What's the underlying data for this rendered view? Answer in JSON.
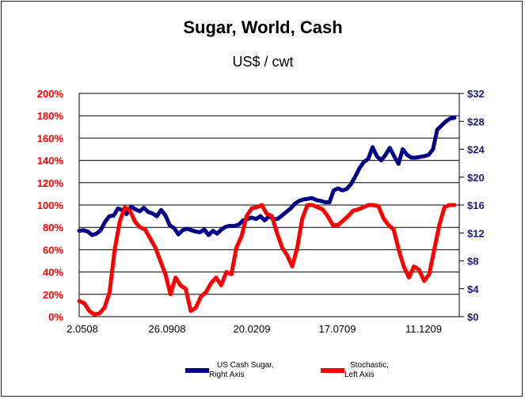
{
  "chart_data": {
    "type": "line",
    "title": "Sugar, World, Cash",
    "subtitle": "US$ / cwt",
    "colors": {
      "left_axis": "#ff0000",
      "right_axis": "#1a1a80",
      "series_sugar": "#00008b",
      "series_stoch": "#ff0000",
      "grid": "#000000"
    },
    "grid": true,
    "x_tick_labels": [
      "2.0508",
      "26.0908",
      "20.0209",
      "17.0709",
      "11.1209"
    ],
    "y_left": {
      "ylim": [
        0,
        200
      ],
      "ticks": [
        "0%",
        "20%",
        "40%",
        "60%",
        "80%",
        "100%",
        "120%",
        "140%",
        "160%",
        "180%",
        "200%"
      ]
    },
    "y_right": {
      "ylim": [
        0,
        32
      ],
      "ticks": [
        "$0",
        "$4",
        "$8",
        "$12",
        "$16",
        "$20",
        "$24",
        "$28",
        "$32"
      ]
    },
    "legend_position": "bottom",
    "series": [
      {
        "name": "US Cash Sugar, Right Axis",
        "axis": "right",
        "values": [
          12.3,
          12.4,
          12.2,
          11.7,
          11.9,
          12.4,
          13.6,
          14.4,
          14.5,
          15.5,
          15.3,
          14.7,
          15.8,
          15.4,
          15.1,
          15.6,
          15.0,
          14.8,
          14.4,
          15.3,
          14.5,
          13.1,
          12.7,
          11.8,
          12.4,
          12.6,
          12.4,
          12.2,
          12.1,
          12.5,
          11.7,
          12.3,
          11.9,
          12.5,
          12.9,
          13.0,
          13.0,
          13.2,
          13.8,
          14.0,
          14.2,
          14.0,
          14.4,
          13.8,
          14.4,
          14.0,
          14.0,
          14.5,
          15.0,
          15.5,
          16.2,
          16.6,
          16.8,
          16.9,
          17.0,
          16.7,
          16.6,
          16.4,
          16.4,
          18.1,
          18.4,
          18.1,
          18.3,
          19.0,
          20.1,
          21.3,
          22.2,
          22.6,
          24.3,
          23.0,
          22.4,
          23.2,
          24.2,
          23.0,
          21.9,
          24.0,
          23.2,
          22.8,
          22.8,
          22.9,
          23.0,
          23.2,
          24.0,
          26.8,
          27.4,
          28.0,
          28.4,
          28.5
        ]
      },
      {
        "name": "Stochastic, Left Axis",
        "axis": "left",
        "values": [
          14,
          12,
          5,
          2,
          3,
          8,
          22,
          60,
          85,
          98,
          95,
          85,
          80,
          78,
          70,
          62,
          50,
          38,
          20,
          35,
          28,
          25,
          5,
          8,
          18,
          22,
          30,
          35,
          28,
          40,
          38,
          62,
          72,
          90,
          97,
          98,
          100,
          92,
          90,
          75,
          62,
          55,
          45,
          62,
          88,
          100,
          100,
          98,
          96,
          90,
          82,
          82,
          86,
          90,
          95,
          96,
          98,
          100,
          100,
          99,
          88,
          82,
          78,
          60,
          45,
          35,
          45,
          42,
          32,
          38,
          60,
          82,
          98,
          100,
          100
        ]
      }
    ]
  }
}
